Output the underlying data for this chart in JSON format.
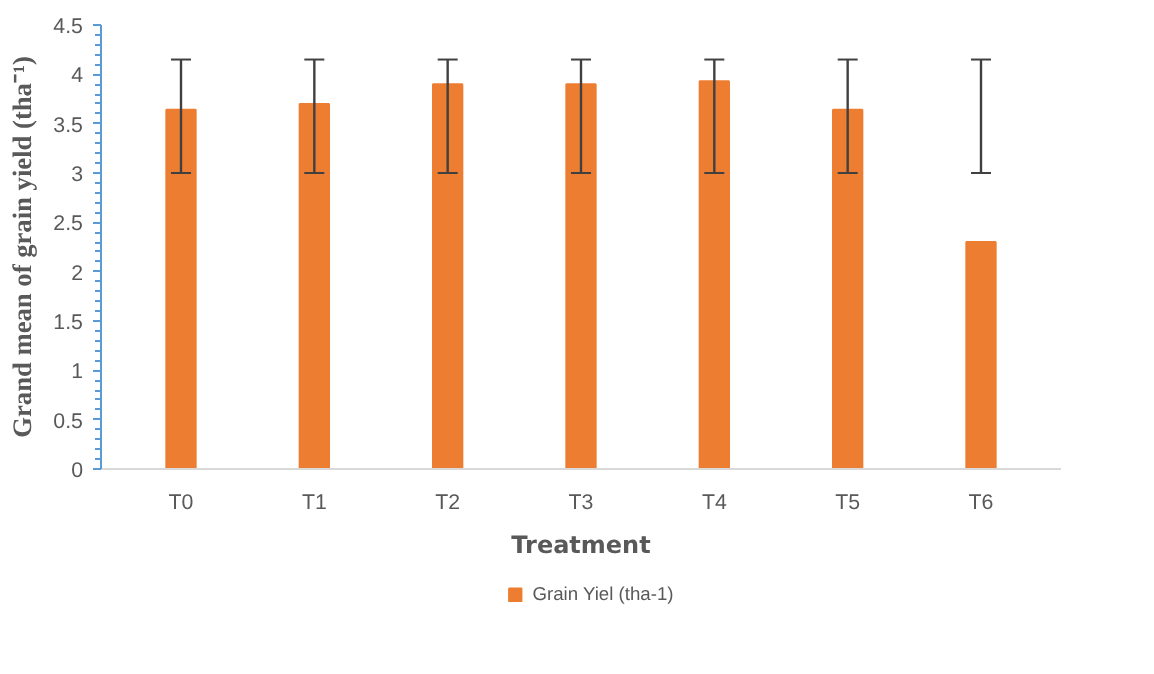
{
  "chart_data": {
    "type": "bar",
    "xlabel": "Treatment",
    "ylabel": "Grand mean of grain yield (tha⁻¹)",
    "categories": [
      "T0",
      "T1",
      "T2",
      "T3",
      "T4",
      "T5",
      "T6"
    ],
    "series": [
      {
        "name": "Grain Yiel (tha-1)",
        "color": "#ed7d31",
        "values": [
          3.64,
          3.7,
          3.9,
          3.9,
          3.93,
          3.64,
          2.3
        ],
        "errors": [
          [
            3,
            4.15
          ],
          [
            3,
            4.15
          ],
          [
            3,
            4.15
          ],
          [
            3,
            4.15
          ],
          [
            3,
            4.15
          ],
          [
            3,
            4.15
          ],
          [
            3,
            4.15
          ]
        ]
      }
    ],
    "ylim": [
      0,
      4.5
    ],
    "yticks": [
      0,
      0.5,
      1,
      1.5,
      2,
      2.5,
      3,
      3.5,
      4,
      4.5
    ],
    "grid": false,
    "legend": "bottom"
  }
}
